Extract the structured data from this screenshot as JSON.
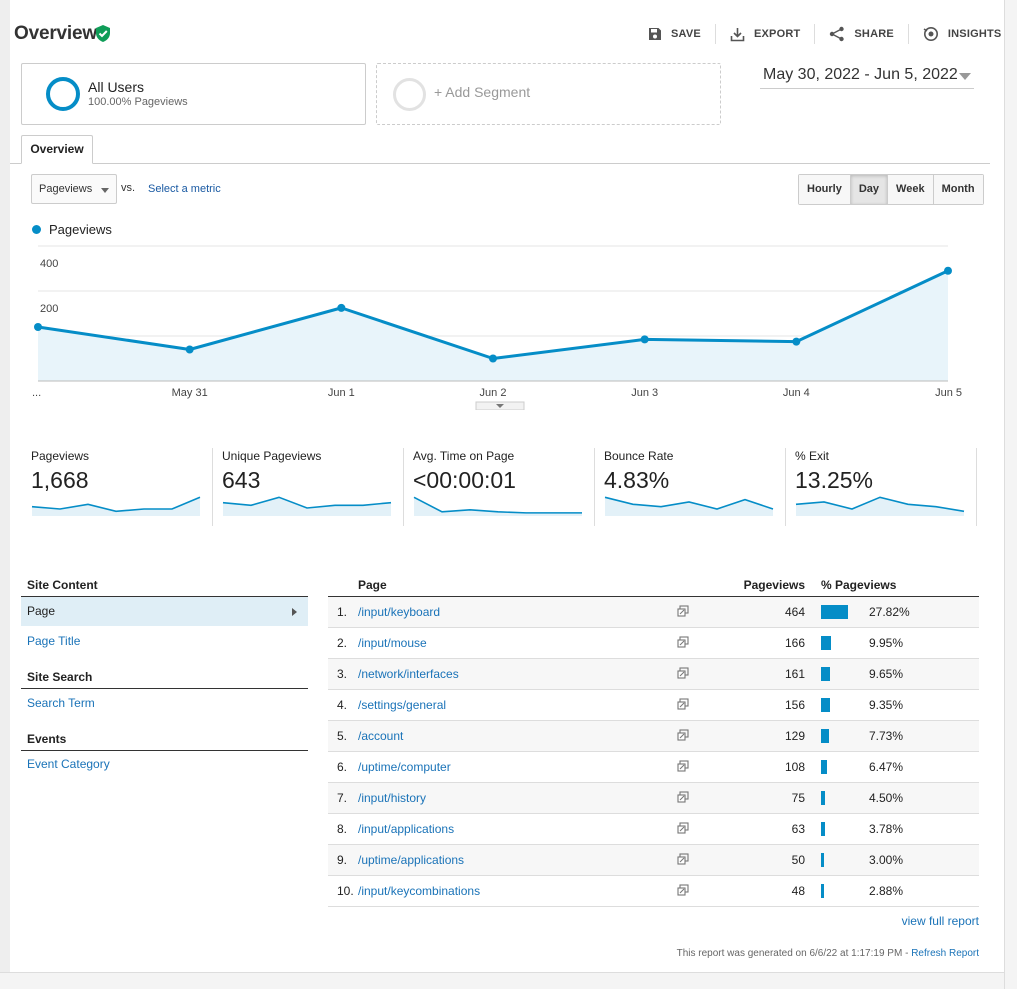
{
  "header": {
    "title": "Overview",
    "toolbar": [
      {
        "label": "SAVE",
        "icon": "save-icon"
      },
      {
        "label": "EXPORT",
        "icon": "export-icon"
      },
      {
        "label": "SHARE",
        "icon": "share-icon"
      },
      {
        "label": "INSIGHTS",
        "icon": "insights-icon"
      }
    ]
  },
  "segment": {
    "name": "All Users",
    "sub": "100.00% Pageviews",
    "add_label": "+ Add Segment"
  },
  "date_range": "May 30, 2022 - Jun 5, 2022",
  "tab": "Overview",
  "metric_picker": {
    "selected": "Pageviews",
    "vs": "vs.",
    "select_metric": "Select a metric"
  },
  "periods": [
    {
      "label": "Hourly",
      "active": false
    },
    {
      "label": "Day",
      "active": true
    },
    {
      "label": "Week",
      "active": false
    },
    {
      "label": "Month",
      "active": false
    }
  ],
  "chart_data": {
    "type": "area",
    "series": [
      {
        "name": "Pageviews",
        "values": [
          240,
          140,
          325,
          100,
          185,
          175,
          490
        ]
      }
    ],
    "categories": [
      "...",
      "May 31",
      "Jun 1",
      "Jun 2",
      "Jun 3",
      "Jun 4",
      "Jun 5"
    ],
    "yticks": [
      200,
      400,
      600
    ],
    "ylim": [
      0,
      600
    ],
    "color": "#058dc7",
    "grid": true
  },
  "scorecards": [
    {
      "label": "Pageviews",
      "value": "1,668",
      "spark": [
        4,
        3,
        5,
        2,
        3,
        3,
        8
      ]
    },
    {
      "label": "Unique Pageviews",
      "value": "643",
      "spark": [
        5,
        4,
        7,
        3,
        4,
        4,
        5
      ]
    },
    {
      "label": "Avg. Time on Page",
      "value": "<00:00:01",
      "spark": [
        9,
        2,
        3,
        2,
        1.5,
        1.5,
        1.5
      ]
    },
    {
      "label": "Bounce Rate",
      "value": "4.83%",
      "spark": [
        8,
        5,
        4,
        6,
        3,
        7,
        3
      ]
    },
    {
      "label": "% Exit",
      "value": "13.25%",
      "spark": [
        5,
        6,
        3,
        8,
        5,
        4,
        2
      ]
    }
  ],
  "nav": {
    "site_content": "Site Content",
    "page": "Page",
    "page_title": "Page Title",
    "site_search": "Site Search",
    "search_term": "Search Term",
    "events": "Events",
    "event_category": "Event Category"
  },
  "table": {
    "col_page": "Page",
    "col_pageviews": "Pageviews",
    "col_pct": "% Pageviews",
    "rows": [
      {
        "n": "1.",
        "page": "/input/keyboard",
        "pv": "464",
        "pct": "27.82%",
        "frac": 27.82
      },
      {
        "n": "2.",
        "page": "/input/mouse",
        "pv": "166",
        "pct": "9.95%",
        "frac": 9.95
      },
      {
        "n": "3.",
        "page": "/network/interfaces",
        "pv": "161",
        "pct": "9.65%",
        "frac": 9.65
      },
      {
        "n": "4.",
        "page": "/settings/general",
        "pv": "156",
        "pct": "9.35%",
        "frac": 9.35
      },
      {
        "n": "5.",
        "page": "/account",
        "pv": "129",
        "pct": "7.73%",
        "frac": 7.73
      },
      {
        "n": "6.",
        "page": "/uptime/computer",
        "pv": "108",
        "pct": "6.47%",
        "frac": 6.47
      },
      {
        "n": "7.",
        "page": "/input/history",
        "pv": "75",
        "pct": "4.50%",
        "frac": 4.5
      },
      {
        "n": "8.",
        "page": "/input/applications",
        "pv": "63",
        "pct": "3.78%",
        "frac": 3.78
      },
      {
        "n": "9.",
        "page": "/uptime/applications",
        "pv": "50",
        "pct": "3.00%",
        "frac": 3.0
      },
      {
        "n": "10.",
        "page": "/input/keycombinations",
        "pv": "48",
        "pct": "2.88%",
        "frac": 2.88
      }
    ]
  },
  "view_full_report": "view full report",
  "footer": {
    "note": "This report was generated on 6/6/22 at 1:17:19 PM - ",
    "refresh": "Refresh Report"
  }
}
